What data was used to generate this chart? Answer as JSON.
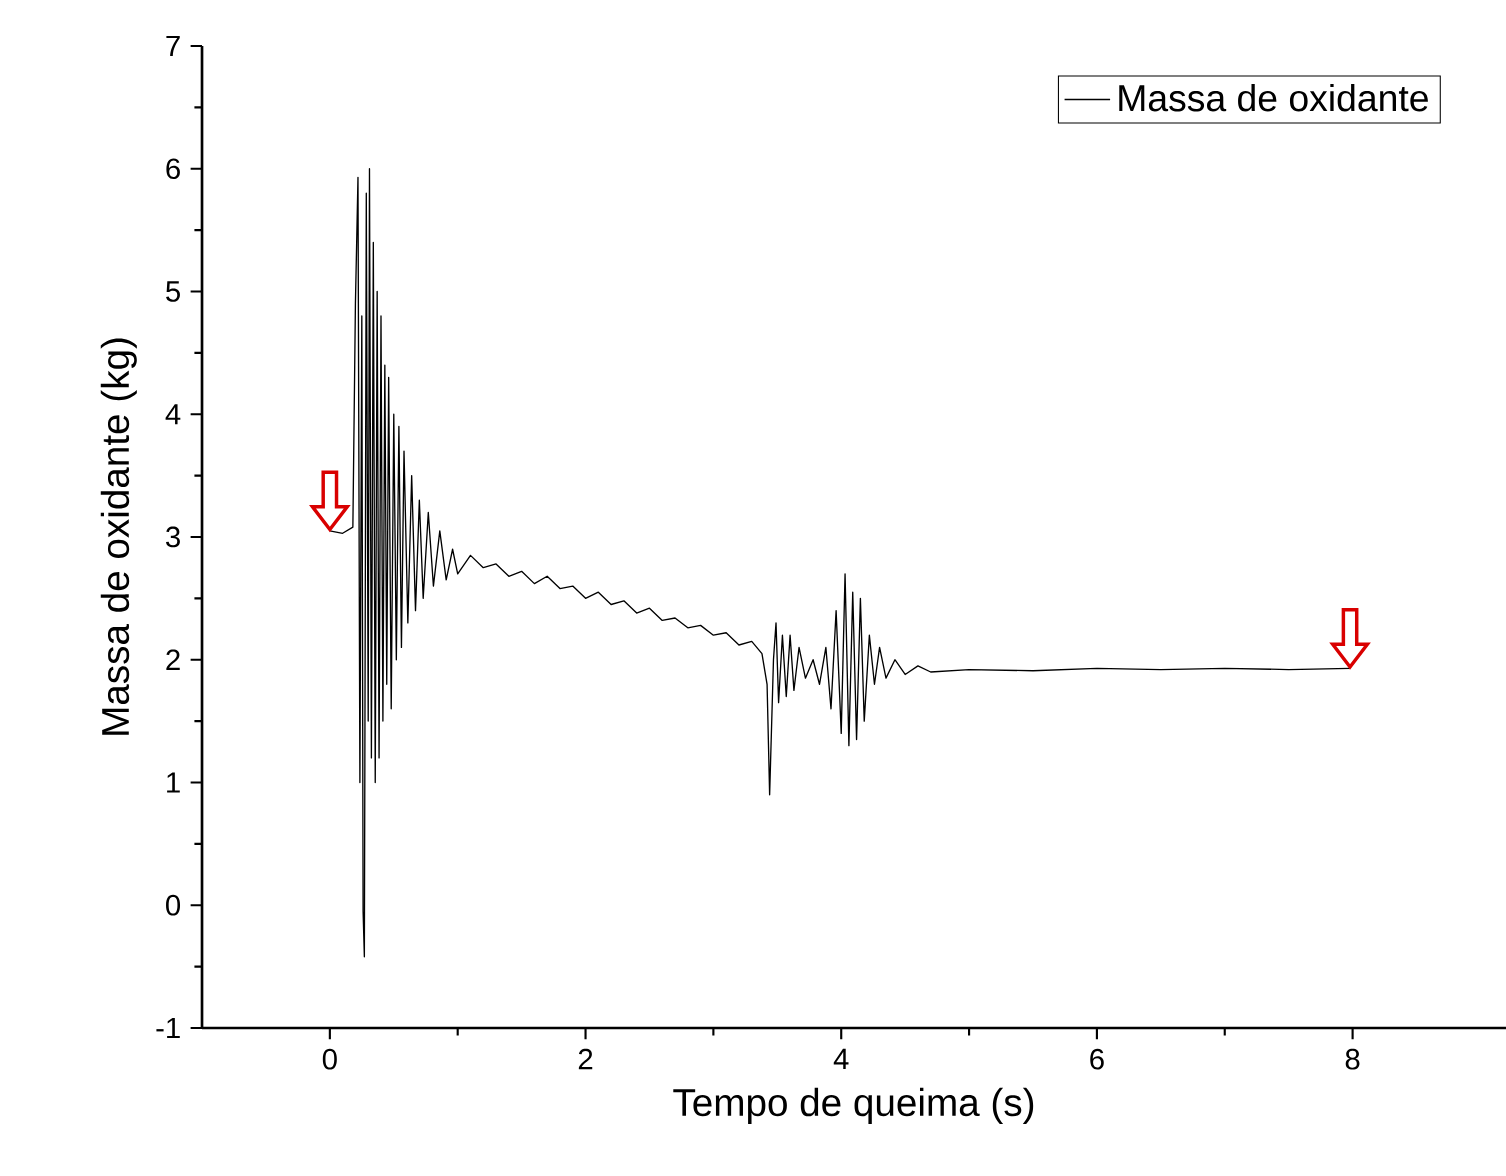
{
  "chart_data": {
    "type": "line",
    "xlabel": "Tempo de queima (s)",
    "ylabel": "Massa de oxidante (kg)",
    "xlim": [
      -1,
      9.2
    ],
    "xticks": [
      0,
      2,
      4,
      6,
      8
    ],
    "ylim": [
      -1,
      7
    ],
    "yticks": [
      -1,
      0,
      1,
      2,
      3,
      4,
      5,
      6,
      7
    ],
    "grid": false,
    "legend": "top right",
    "marker": "none",
    "line_style": "solid",
    "series": [
      {
        "name": "Massa de oxidante",
        "color": "#000000",
        "x": [
          0,
          0.1,
          0.18,
          0.2,
          0.22,
          0.235,
          0.25,
          0.26,
          0.27,
          0.285,
          0.3,
          0.31,
          0.325,
          0.34,
          0.355,
          0.37,
          0.385,
          0.4,
          0.415,
          0.43,
          0.445,
          0.46,
          0.48,
          0.5,
          0.52,
          0.54,
          0.56,
          0.58,
          0.61,
          0.64,
          0.67,
          0.7,
          0.73,
          0.77,
          0.81,
          0.86,
          0.91,
          0.96,
          1.0,
          1.1,
          1.2,
          1.3,
          1.4,
          1.5,
          1.6,
          1.7,
          1.8,
          1.9,
          2.0,
          2.1,
          2.2,
          2.3,
          2.4,
          2.5,
          2.6,
          2.7,
          2.8,
          2.9,
          3.0,
          3.1,
          3.2,
          3.3,
          3.38,
          3.42,
          3.44,
          3.47,
          3.49,
          3.51,
          3.54,
          3.57,
          3.6,
          3.63,
          3.67,
          3.72,
          3.78,
          3.83,
          3.88,
          3.92,
          3.96,
          4.0,
          4.03,
          4.06,
          4.09,
          4.12,
          4.15,
          4.18,
          4.22,
          4.26,
          4.3,
          4.35,
          4.42,
          4.5,
          4.6,
          4.7,
          5.0,
          5.5,
          6.0,
          6.5,
          7.0,
          7.5,
          7.98
        ],
        "values": [
          3.05,
          3.03,
          3.08,
          4.9,
          5.93,
          1.0,
          4.8,
          -0.05,
          -0.42,
          5.8,
          1.5,
          6.0,
          1.2,
          5.4,
          1.0,
          5.0,
          1.2,
          4.8,
          1.5,
          4.4,
          1.8,
          4.3,
          1.6,
          4.0,
          2.0,
          3.9,
          2.1,
          3.7,
          2.3,
          3.5,
          2.4,
          3.3,
          2.5,
          3.2,
          2.6,
          3.05,
          2.65,
          2.9,
          2.7,
          2.85,
          2.75,
          2.78,
          2.68,
          2.72,
          2.62,
          2.68,
          2.58,
          2.6,
          2.5,
          2.55,
          2.45,
          2.48,
          2.38,
          2.42,
          2.32,
          2.34,
          2.26,
          2.28,
          2.2,
          2.22,
          2.12,
          2.15,
          2.05,
          1.8,
          0.9,
          2.0,
          2.3,
          1.65,
          2.2,
          1.7,
          2.2,
          1.75,
          2.1,
          1.85,
          2.0,
          1.8,
          2.1,
          1.6,
          2.4,
          1.4,
          2.7,
          1.3,
          2.55,
          1.35,
          2.5,
          1.5,
          2.2,
          1.8,
          2.1,
          1.85,
          2.0,
          1.88,
          1.95,
          1.9,
          1.92,
          1.91,
          1.93,
          1.92,
          1.93,
          1.92,
          1.93
        ]
      }
    ]
  }
}
